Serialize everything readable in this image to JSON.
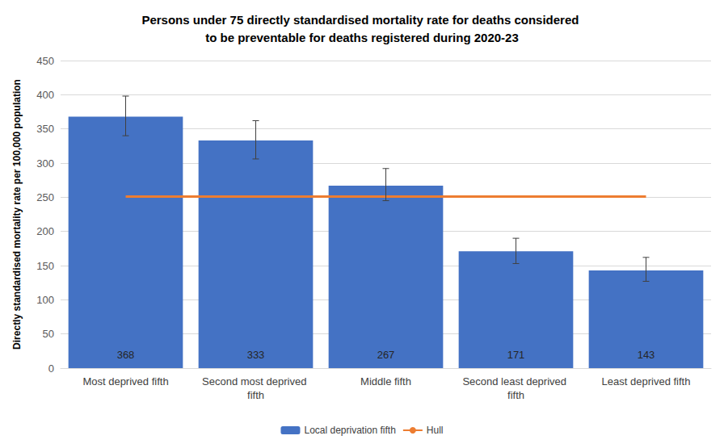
{
  "chart_data": {
    "type": "bar",
    "title": "Persons under 75 directly standardised mortality rate for deaths considered to be preventable for deaths registered during 2020-23",
    "y_label": "Directly standardised mortality rate per 100,000 population",
    "categories": [
      "Most deprived fifth",
      "Second most deprived fifth",
      "Middle fifth",
      "Second least deprived fifth",
      "Least deprived fifth"
    ],
    "series": [
      {
        "name": "Local deprivation fifth",
        "type": "bar",
        "color": "#4472c4",
        "values": [
          368,
          333,
          267,
          171,
          143
        ],
        "error_low": [
          340,
          306,
          245,
          153,
          127
        ],
        "error_high": [
          398,
          362,
          292,
          190,
          162
        ],
        "data_labels": true
      },
      {
        "name": "Hull",
        "type": "line",
        "color": "#ed7d31",
        "values": [
          251,
          251,
          251,
          251,
          251
        ]
      }
    ],
    "ylim": [
      0,
      450
    ],
    "yticks": [
      0,
      50,
      100,
      150,
      200,
      250,
      300,
      350,
      400,
      450
    ],
    "grid": true,
    "legend": "bottom"
  }
}
